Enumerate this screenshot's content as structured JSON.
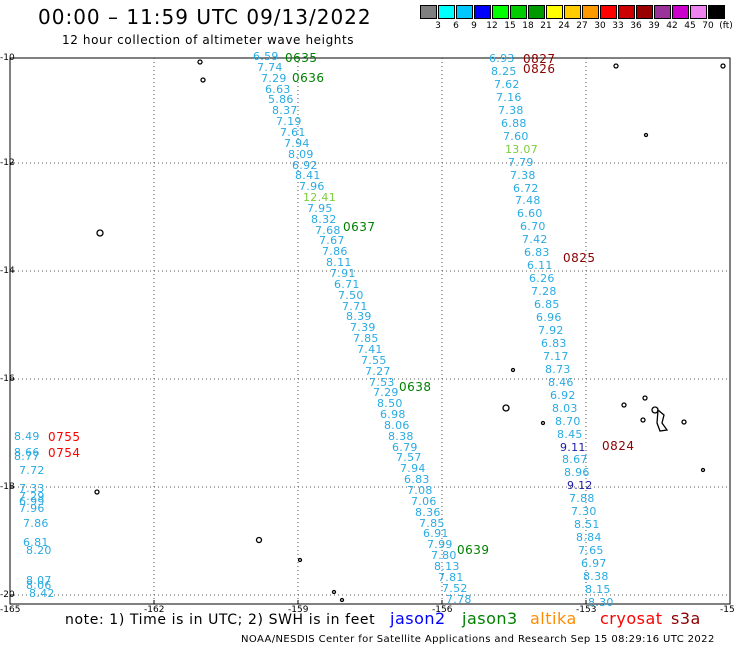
{
  "title": "00:00 – 11:59 UTC 09/13/2022",
  "subtitle": "12 hour collection of altimeter wave heights",
  "colorbar": {
    "colors": [
      "#7f7f7f",
      "#00ffff",
      "#00c8ff",
      "#0000ff",
      "#00ff00",
      "#00cc00",
      "#009900",
      "#ffff00",
      "#ffcc00",
      "#ff9900",
      "#ff0000",
      "#cc0000",
      "#990000",
      "#993399",
      "#cc00cc",
      "#ee82ee",
      "#000000"
    ],
    "labels": [
      "3",
      "6",
      "9",
      "12",
      "15",
      "18",
      "21",
      "24",
      "27",
      "30",
      "33",
      "36",
      "39",
      "42",
      "45",
      "70",
      "(ft)"
    ]
  },
  "axes": {
    "lon_ticks": [
      "-165",
      "-162",
      "-159",
      "-156",
      "-153",
      "-15"
    ],
    "lat_ticks": [
      "-10",
      "-12",
      "-14",
      "-16",
      "-18",
      "-20"
    ]
  },
  "tracks": [
    {
      "color": "#29abe2",
      "values": [
        "6.59",
        "7.74",
        "7.29",
        "6.63",
        "5.86",
        "8.37",
        "7.19",
        "7.61",
        "7.94",
        "8.09",
        "6.92",
        "8.41",
        "7.96",
        "12.41",
        "7.95",
        "8.32",
        "7.68",
        "7.67",
        "7.86",
        "8.11",
        "7.91",
        "6.71",
        "7.50",
        "7.71",
        "8.39",
        "7.39",
        "7.85",
        "7.41",
        "7.55",
        "7.27",
        "7.53",
        "7.29",
        "8.50",
        "6.98",
        "8.06",
        "8.38",
        "6.79",
        "7.57",
        "7.94",
        "6.83",
        "7.08",
        "7.06",
        "8.36",
        "7.85",
        "6.91",
        "7.99",
        "7.80",
        "8.13",
        "7.81",
        "7.52",
        "7.78"
      ]
    },
    {
      "color": "#29abe2",
      "values": [
        "6.93",
        "8.25",
        "7.62",
        "7.16",
        "7.38",
        "6.88",
        "7.60",
        "13.07",
        "7.79",
        "7.38",
        "6.72",
        "7.48",
        "6.60",
        "6.70",
        "7.42",
        "6.83",
        "6.11",
        "6.26",
        "7.28",
        "6.85",
        "6.96",
        "7.92",
        "6.83",
        "7.17",
        "8.73",
        "8.46",
        "6.92",
        "8.03",
        "8.70",
        "8.45",
        "9.11",
        "8.67",
        "8.96",
        "9.12",
        "7.88",
        "7.30",
        "8.51",
        "8.84",
        "7.65",
        "6.97",
        "8.38",
        "8.15",
        "8.30"
      ]
    },
    {
      "color": "#29abe2",
      "values": [
        "8.49",
        "8.66",
        "8.77",
        "7.72",
        "7.33",
        "7.29",
        "6.99",
        "7.96",
        "7.86",
        "6.81",
        "8.20",
        "8.07",
        "8.06",
        "8.42"
      ]
    }
  ],
  "times": [
    {
      "text": "0635",
      "color": "#008000"
    },
    {
      "text": "0636",
      "color": "#008000"
    },
    {
      "text": "0637",
      "color": "#008000"
    },
    {
      "text": "0638",
      "color": "#008000"
    },
    {
      "text": "0639",
      "color": "#008000"
    },
    {
      "text": "0827",
      "color": "#8b0000"
    },
    {
      "text": "0826",
      "color": "#8b0000"
    },
    {
      "text": "0825",
      "color": "#8b0000"
    },
    {
      "text": "0824",
      "color": "#8b0000"
    },
    {
      "text": "0755",
      "color": "#ff0000"
    },
    {
      "text": "0754",
      "color": "#ff0000"
    }
  ],
  "note": "note:  1) Time is in UTC;  2) SWH is in feet",
  "legend": [
    {
      "name": "jason2",
      "color": "#0000ff"
    },
    {
      "name": "jason3",
      "color": "#008000"
    },
    {
      "name": "altika",
      "color": "#ff8c00"
    },
    {
      "name": "cryosat",
      "color": "#ff0000"
    },
    {
      "name": "s3a",
      "color": "#8b0000"
    }
  ],
  "footer": "NOAA/NESDIS Center for Satellite Applications and Research    Sep 15 08:29:16 UTC 2022"
}
